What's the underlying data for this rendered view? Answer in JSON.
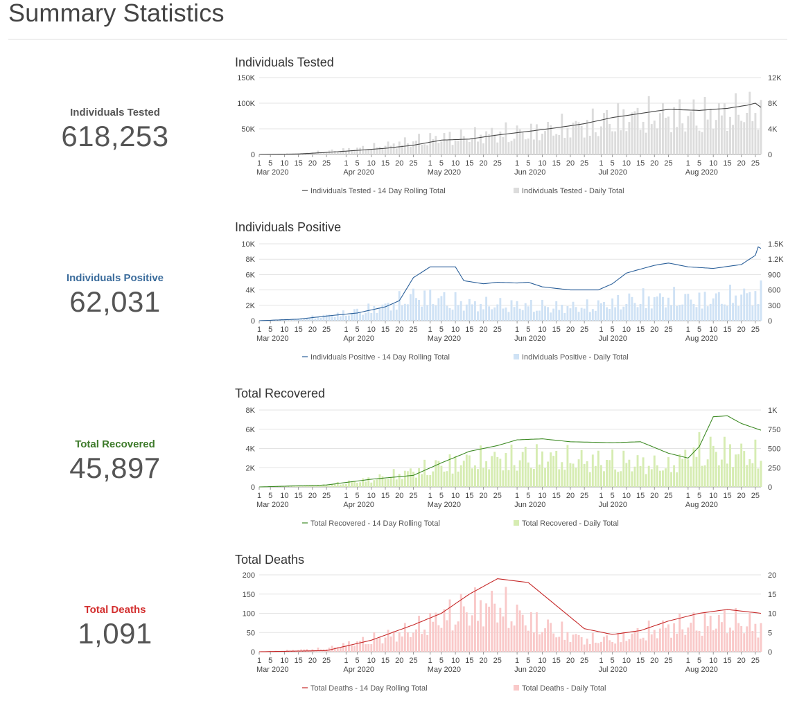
{
  "page": {
    "title": "Summary Statistics"
  },
  "stats": [
    {
      "label": "Individuals Tested",
      "value": "618,253",
      "color": "#555555"
    },
    {
      "label": "Individuals Positive",
      "value": "62,031",
      "color": "#3b6c9c"
    },
    {
      "label": "Total Recovered",
      "value": "45,897",
      "color": "#3d7a2a"
    },
    {
      "label": "Total Deaths",
      "value": "1,091",
      "color": "#d32f2f"
    }
  ],
  "chart_data": [
    {
      "type": "bar",
      "title": "Individuals Tested",
      "x_range": [
        "2020-03-01",
        "2020-08-27"
      ],
      "left_ticks": [
        "0",
        "50K",
        "100K",
        "150K"
      ],
      "right_ticks": [
        "0",
        "4K",
        "8K",
        "12K"
      ],
      "ylim_left": [
        0,
        150000
      ],
      "ylim_right": [
        0,
        12000
      ],
      "line_color": "#444444",
      "bar_color": "#dcdcdc",
      "rolling_points": [
        [
          "03-01",
          0
        ],
        [
          "03-15",
          1000
        ],
        [
          "03-25",
          4000
        ],
        [
          "04-05",
          8000
        ],
        [
          "04-15",
          12000
        ],
        [
          "04-25",
          18000
        ],
        [
          "05-05",
          28000
        ],
        [
          "05-15",
          30000
        ],
        [
          "05-25",
          38000
        ],
        [
          "06-05",
          45000
        ],
        [
          "06-15",
          52000
        ],
        [
          "06-25",
          60000
        ],
        [
          "07-05",
          72000
        ],
        [
          "07-15",
          80000
        ],
        [
          "07-25",
          88000
        ],
        [
          "08-05",
          86000
        ],
        [
          "08-15",
          90000
        ],
        [
          "08-22",
          96000
        ],
        [
          "08-25",
          100000
        ],
        [
          "08-27",
          92000
        ]
      ],
      "daily_points": [
        [
          "03-01",
          0
        ],
        [
          "03-15",
          200
        ],
        [
          "04-01",
          900
        ],
        [
          "04-15",
          1700
        ],
        [
          "04-25",
          2600
        ],
        [
          "05-05",
          3200
        ],
        [
          "05-15",
          3400
        ],
        [
          "05-25",
          4100
        ],
        [
          "06-05",
          4200
        ],
        [
          "06-15",
          5000
        ],
        [
          "06-25",
          5600
        ],
        [
          "07-05",
          6800
        ],
        [
          "07-15",
          7300
        ],
        [
          "07-25",
          7400
        ],
        [
          "08-05",
          7600
        ],
        [
          "08-15",
          7800
        ],
        [
          "08-25",
          8400
        ]
      ],
      "legend_line": "Individuals Tested - 14 Day Rolling Total",
      "legend_bar": "Individuals Tested - Daily Total"
    },
    {
      "type": "bar",
      "title": "Individuals Positive",
      "x_range": [
        "2020-03-01",
        "2020-08-27"
      ],
      "left_ticks": [
        "0",
        "2K",
        "4K",
        "6K",
        "8K",
        "10K"
      ],
      "right_ticks": [
        "0",
        "300",
        "600",
        "900",
        "1.2K",
        "1.5K"
      ],
      "ylim_left": [
        0,
        10000
      ],
      "ylim_right": [
        0,
        1500
      ],
      "line_color": "#2a5f99",
      "bar_color": "#cfe2f5",
      "rolling_points": [
        [
          "03-01",
          0
        ],
        [
          "03-15",
          200
        ],
        [
          "03-25",
          600
        ],
        [
          "04-05",
          1000
        ],
        [
          "04-15",
          1800
        ],
        [
          "04-20",
          2600
        ],
        [
          "04-25",
          5600
        ],
        [
          "05-01",
          7000
        ],
        [
          "05-10",
          7000
        ],
        [
          "05-13",
          5200
        ],
        [
          "05-20",
          4800
        ],
        [
          "05-25",
          5000
        ],
        [
          "06-01",
          4900
        ],
        [
          "06-05",
          5000
        ],
        [
          "06-10",
          4400
        ],
        [
          "06-20",
          4000
        ],
        [
          "06-30",
          4000
        ],
        [
          "07-05",
          4800
        ],
        [
          "07-10",
          6200
        ],
        [
          "07-20",
          7200
        ],
        [
          "07-25",
          7500
        ],
        [
          "08-01",
          7000
        ],
        [
          "08-10",
          6800
        ],
        [
          "08-20",
          7300
        ],
        [
          "08-25",
          8500
        ],
        [
          "08-26",
          9600
        ],
        [
          "08-27",
          9400
        ]
      ],
      "daily_points": [
        [
          "03-01",
          0
        ],
        [
          "03-15",
          40
        ],
        [
          "04-01",
          180
        ],
        [
          "04-15",
          350
        ],
        [
          "04-25",
          580
        ],
        [
          "05-05",
          520
        ],
        [
          "05-15",
          400
        ],
        [
          "05-25",
          380
        ],
        [
          "06-05",
          360
        ],
        [
          "06-15",
          330
        ],
        [
          "06-25",
          330
        ],
        [
          "07-05",
          420
        ],
        [
          "07-15",
          520
        ],
        [
          "07-25",
          540
        ],
        [
          "08-05",
          500
        ],
        [
          "08-15",
          560
        ],
        [
          "08-25",
          650
        ]
      ],
      "legend_line": "Individuals Positive - 14 Day Rolling Total",
      "legend_bar": "Individuals Positive - Daily Total"
    },
    {
      "type": "bar",
      "title": "Total Recovered",
      "x_range": [
        "2020-03-01",
        "2020-08-27"
      ],
      "left_ticks": [
        "0",
        "2K",
        "4K",
        "6K",
        "8K"
      ],
      "right_ticks": [
        "0",
        "250",
        "500",
        "750",
        "1K"
      ],
      "ylim_left": [
        0,
        8000
      ],
      "ylim_right": [
        0,
        1000
      ],
      "line_color": "#3d8a24",
      "bar_color": "#d6ecb2",
      "rolling_points": [
        [
          "03-01",
          0
        ],
        [
          "03-25",
          200
        ],
        [
          "04-10",
          800
        ],
        [
          "04-25",
          1200
        ],
        [
          "05-05",
          2500
        ],
        [
          "05-15",
          3700
        ],
        [
          "05-25",
          4300
        ],
        [
          "06-01",
          4900
        ],
        [
          "06-10",
          5000
        ],
        [
          "06-20",
          4700
        ],
        [
          "07-05",
          4600
        ],
        [
          "07-15",
          4700
        ],
        [
          "07-25",
          3500
        ],
        [
          "08-01",
          3000
        ],
        [
          "08-05",
          4200
        ],
        [
          "08-10",
          7300
        ],
        [
          "08-15",
          7400
        ],
        [
          "08-20",
          6600
        ],
        [
          "08-27",
          5900
        ]
      ],
      "daily_points": [
        [
          "03-01",
          0
        ],
        [
          "03-25",
          30
        ],
        [
          "04-10",
          120
        ],
        [
          "04-25",
          250
        ],
        [
          "05-05",
          350
        ],
        [
          "05-15",
          420
        ],
        [
          "05-25",
          450
        ],
        [
          "06-05",
          480
        ],
        [
          "06-15",
          460
        ],
        [
          "06-25",
          420
        ],
        [
          "07-05",
          420
        ],
        [
          "07-15",
          380
        ],
        [
          "07-25",
          320
        ],
        [
          "08-05",
          600
        ],
        [
          "08-15",
          560
        ],
        [
          "08-27",
          480
        ]
      ],
      "legend_line": "Total Recovered - 14 Day Rolling Total",
      "legend_bar": "Total Recovered - Daily Total"
    },
    {
      "type": "bar",
      "title": "Total Deaths",
      "x_range": [
        "2020-03-01",
        "2020-08-27"
      ],
      "left_ticks": [
        "0",
        "50",
        "100",
        "150",
        "200"
      ],
      "right_ticks": [
        "0",
        "5",
        "10",
        "15",
        "20"
      ],
      "ylim_left": [
        0,
        200
      ],
      "ylim_right": [
        0,
        20
      ],
      "line_color": "#c62828",
      "bar_color": "#f9c9c9",
      "rolling_points": [
        [
          "03-01",
          0
        ],
        [
          "03-25",
          3
        ],
        [
          "04-10",
          30
        ],
        [
          "04-25",
          70
        ],
        [
          "05-05",
          100
        ],
        [
          "05-15",
          150
        ],
        [
          "05-25",
          190
        ],
        [
          "06-05",
          180
        ],
        [
          "06-15",
          120
        ],
        [
          "06-25",
          60
        ],
        [
          "07-05",
          45
        ],
        [
          "07-15",
          55
        ],
        [
          "07-25",
          80
        ],
        [
          "08-05",
          100
        ],
        [
          "08-15",
          110
        ],
        [
          "08-27",
          100
        ]
      ],
      "daily_points": [
        [
          "03-01",
          0
        ],
        [
          "03-25",
          1
        ],
        [
          "04-10",
          4
        ],
        [
          "04-25",
          7
        ],
        [
          "05-05",
          11
        ],
        [
          "05-15",
          14
        ],
        [
          "05-25",
          15
        ],
        [
          "06-05",
          10
        ],
        [
          "06-15",
          7
        ],
        [
          "06-25",
          4
        ],
        [
          "07-05",
          4
        ],
        [
          "07-15",
          6
        ],
        [
          "07-25",
          8
        ],
        [
          "08-05",
          9
        ],
        [
          "08-15",
          10
        ],
        [
          "08-27",
          8
        ]
      ],
      "legend_line": "Total Deaths - 14 Day Rolling Total",
      "legend_bar": "Total Deaths - Daily Total"
    }
  ],
  "x_axis": {
    "day_ticks": [
      "1",
      "5",
      "10",
      "15",
      "20",
      "25",
      "1",
      "5",
      "10",
      "15",
      "20",
      "25",
      "1",
      "5",
      "10",
      "15",
      "20",
      "25",
      "1",
      "5",
      "10",
      "15",
      "20",
      "25",
      "1",
      "5",
      "10",
      "15",
      "20",
      "25",
      "1",
      "5",
      "10",
      "15",
      "20",
      "25"
    ],
    "months": [
      "Mar 2020",
      "Apr 2020",
      "May 2020",
      "Jun 2020",
      "Jul 2020",
      "Aug 2020"
    ]
  }
}
